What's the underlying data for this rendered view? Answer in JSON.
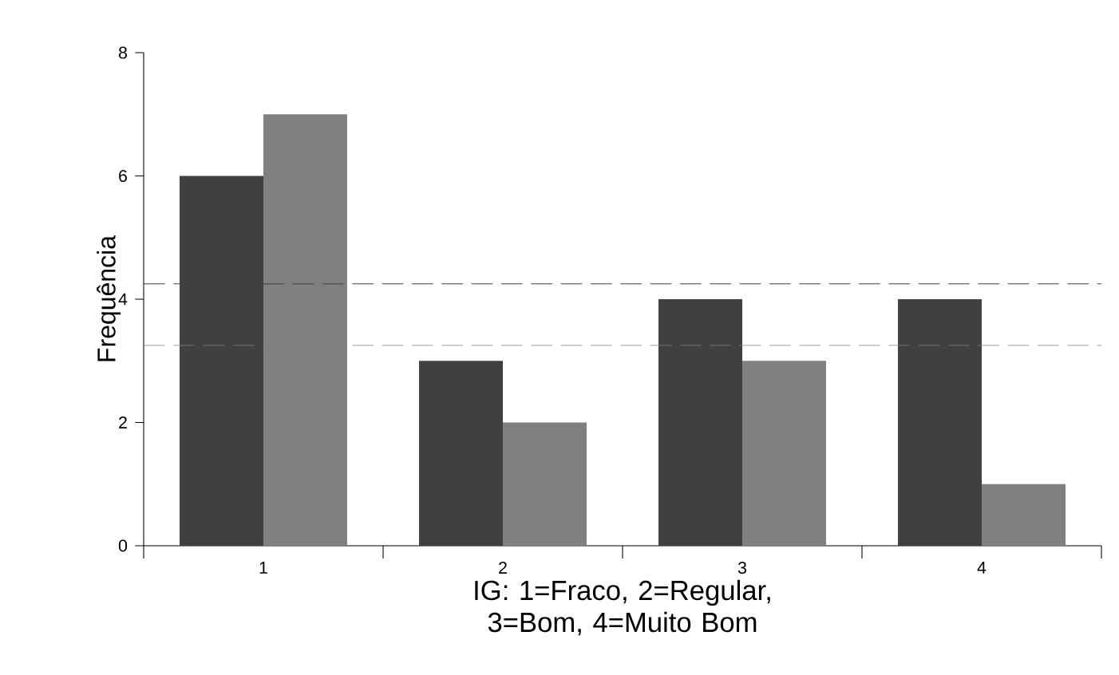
{
  "chart_data": {
    "type": "bar",
    "xlabel": "IG: 1=Fraco, 2=Regular, 3=Bom, 4=Muito Bom",
    "ylabel": "Frequência",
    "categories": [
      "1",
      "2",
      "3",
      "4"
    ],
    "series": [
      {
        "color": "#404040",
        "values": [
          6,
          3,
          4,
          4
        ]
      },
      {
        "color": "#808080",
        "values": [
          7,
          2,
          3,
          1
        ]
      }
    ],
    "ylim": [
      0,
      8
    ],
    "yticks": [
      0,
      2,
      4,
      6,
      8
    ],
    "ref_lines": [
      {
        "axis": "y",
        "value": 4.25,
        "color": "#404040",
        "line_style": "dashed"
      },
      {
        "axis": "y",
        "value": 3.25,
        "color": "#808080",
        "line_style": "dashed"
      }
    ]
  }
}
